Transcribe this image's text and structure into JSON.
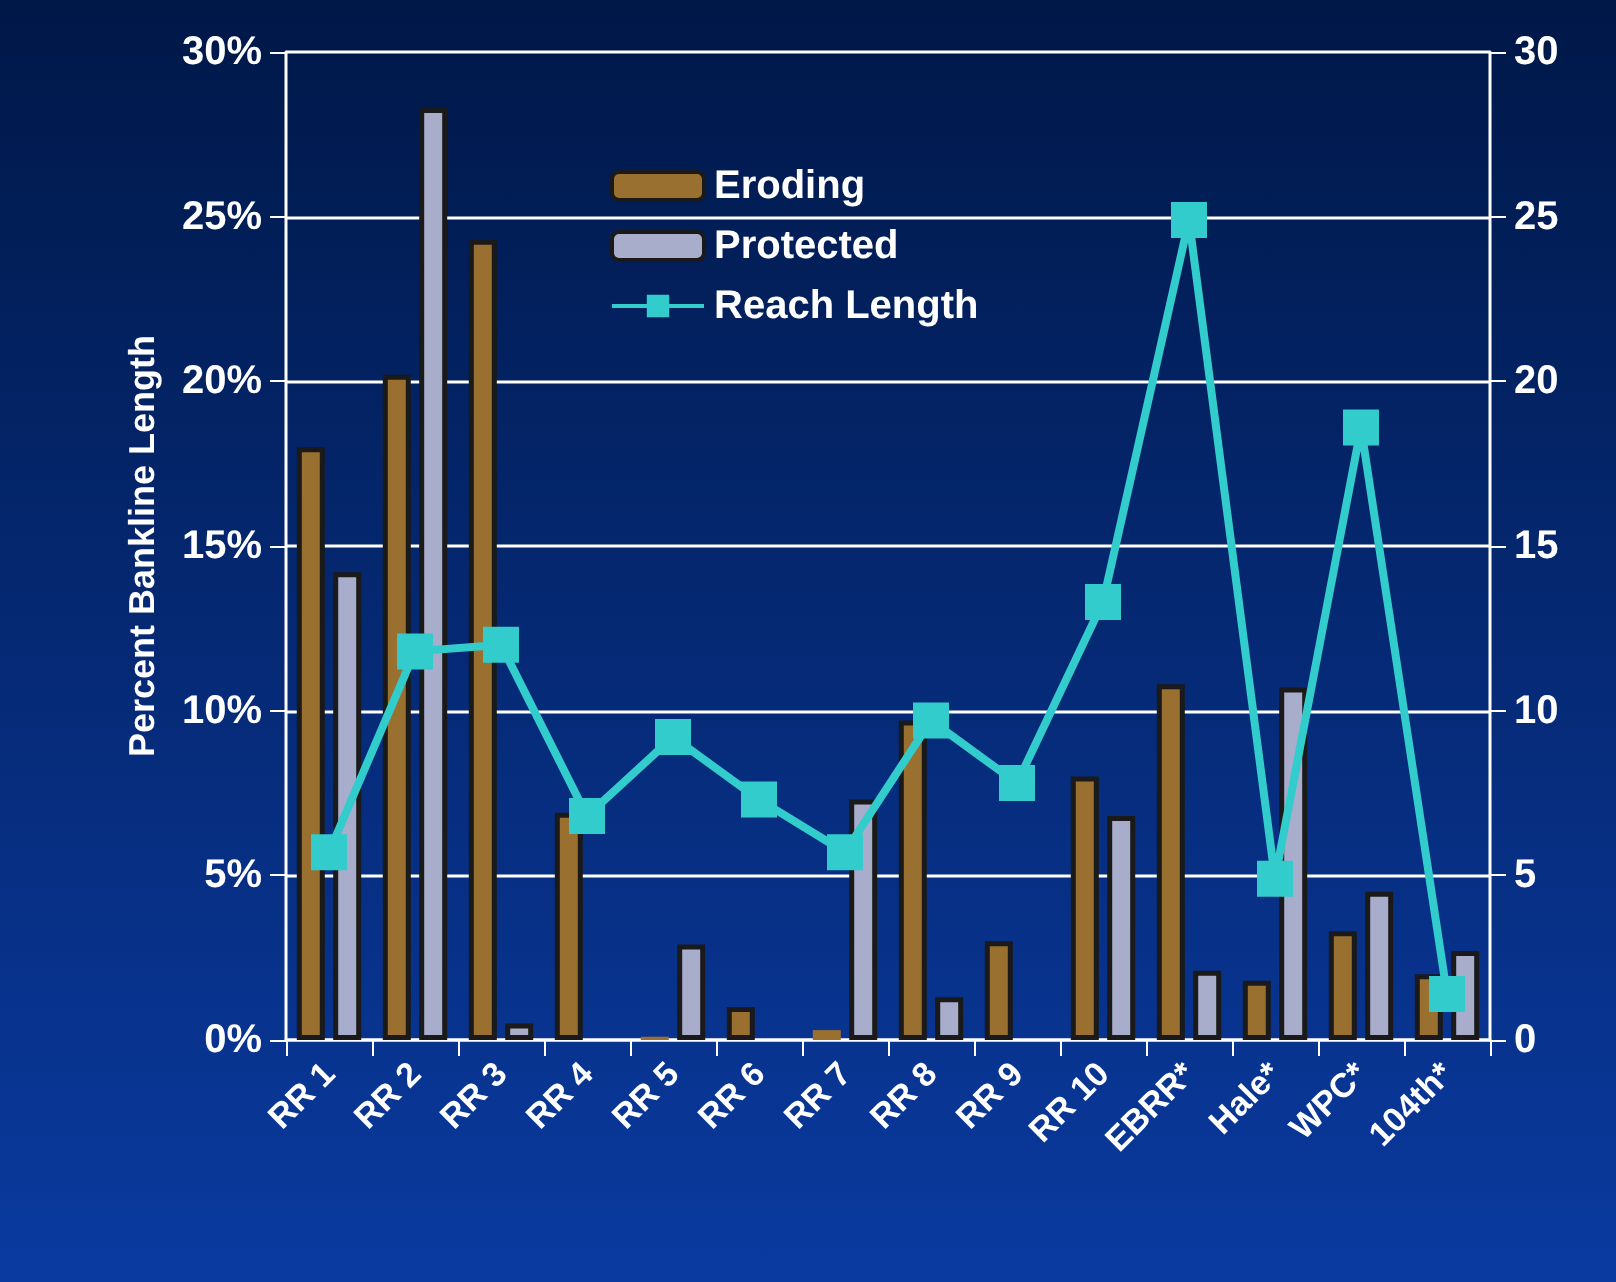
{
  "chart_data": {
    "type": "bar",
    "ylabel": "Percent Bankline Length",
    "categories": [
      "RR 1",
      "RR 2",
      "RR 3",
      "RR 4",
      "RR 5",
      "RR 6",
      "RR 7",
      "RR 8",
      "RR 9",
      "RR 10",
      "EBRR*",
      "Hale*",
      "WPC*",
      "104th*"
    ],
    "series": [
      {
        "name": "Eroding",
        "color": "#9a7030",
        "values": [
          18.0,
          20.2,
          24.3,
          6.9,
          0.1,
          1.0,
          0.3,
          9.7,
          3.0,
          8.0,
          10.8,
          1.8,
          3.3,
          2.0
        ]
      },
      {
        "name": "Protected",
        "color": "#a9adcc",
        "values": [
          14.2,
          28.3,
          0.5,
          null,
          2.9,
          null,
          7.3,
          1.3,
          null,
          6.8,
          2.1,
          10.7,
          4.5,
          2.7
        ]
      },
      {
        "name": "Reach Length",
        "type": "line",
        "axis": "y2",
        "color": "#33cccc",
        "marker": "square",
        "values": [
          5.7,
          11.8,
          12.0,
          6.8,
          9.2,
          7.3,
          5.7,
          9.7,
          7.8,
          13.3,
          24.9,
          4.9,
          18.6,
          1.4
        ]
      }
    ],
    "ylim": [
      0,
      30
    ],
    "yticks": [
      {
        "value": 0,
        "label": "0%"
      },
      {
        "value": 5,
        "label": "5%"
      },
      {
        "value": 10,
        "label": "10%"
      },
      {
        "value": 15,
        "label": "15%"
      },
      {
        "value": 20,
        "label": "20%"
      },
      {
        "value": 25,
        "label": "25%"
      },
      {
        "value": 30,
        "label": "30%"
      }
    ],
    "y2lim": [
      0,
      30
    ],
    "y2ticks": [
      0,
      5,
      10,
      15,
      20,
      25,
      30
    ],
    "grid": "y",
    "legend": "top"
  }
}
